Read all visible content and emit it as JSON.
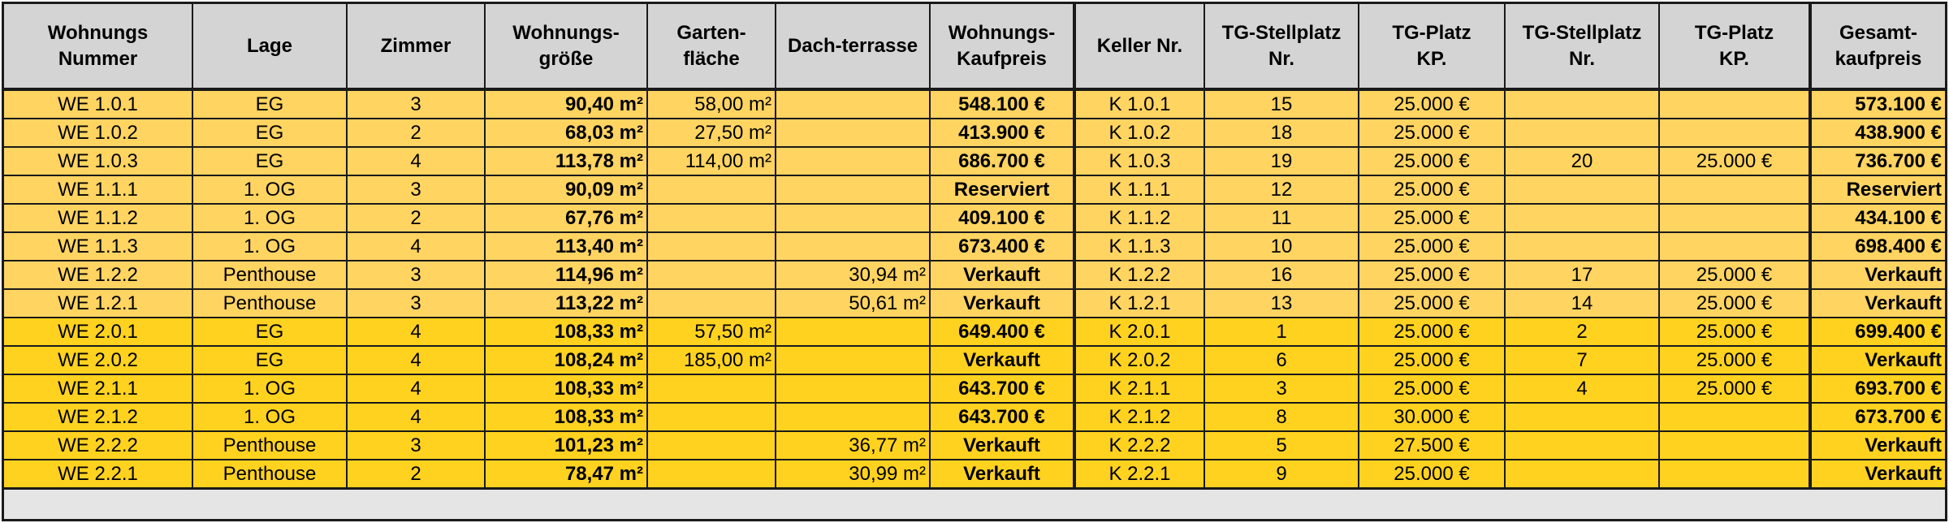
{
  "headers": {
    "nummer": "Wohnungs\nNummer",
    "lage": "Lage",
    "zimmer": "Zimmer",
    "groesse": "Wohnungs-\ngröße",
    "garten": "Garten-\nfläche",
    "dach": "Dach-terrasse",
    "kaufpreis": "Wohnungs-\nKaufpreis",
    "keller": "Keller Nr.",
    "tg1_nr": "TG-Stellplatz\nNr.",
    "tg1_kp": "TG-Platz\nKP.",
    "tg2_nr": "TG-Stellplatz\nNr.",
    "tg2_kp": "TG-Platz\nKP.",
    "gesamt": "Gesamt-\nkaufpreis"
  },
  "colors": {
    "header_bg": "#d4d4d4",
    "group1_bg": "#ffd461",
    "group2_bg": "#ffd21f",
    "footer_bg": "#e5e5e5",
    "border": "#1a1a1a"
  },
  "rows": [
    {
      "group": 1,
      "nummer": "WE 1.0.1",
      "lage": "EG",
      "zimmer": "3",
      "groesse": "90,40 m²",
      "garten": "58,00 m²",
      "dach": "",
      "kaufpreis": "548.100 €",
      "keller": "K 1.0.1",
      "tg1_nr": "15",
      "tg1_kp": "25.000 €",
      "tg2_nr": "",
      "tg2_kp": "",
      "gesamt": "573.100 €"
    },
    {
      "group": 1,
      "nummer": "WE 1.0.2",
      "lage": "EG",
      "zimmer": "2",
      "groesse": "68,03 m²",
      "garten": "27,50 m²",
      "dach": "",
      "kaufpreis": "413.900 €",
      "keller": "K 1.0.2",
      "tg1_nr": "18",
      "tg1_kp": "25.000 €",
      "tg2_nr": "",
      "tg2_kp": "",
      "gesamt": "438.900 €"
    },
    {
      "group": 1,
      "nummer": "WE 1.0.3",
      "lage": "EG",
      "zimmer": "4",
      "groesse": "113,78 m²",
      "garten": "114,00 m²",
      "dach": "",
      "kaufpreis": "686.700 €",
      "keller": "K 1.0.3",
      "tg1_nr": "19",
      "tg1_kp": "25.000 €",
      "tg2_nr": "20",
      "tg2_kp": "25.000 €",
      "gesamt": "736.700 €"
    },
    {
      "group": 1,
      "nummer": "WE 1.1.1",
      "lage": "1. OG",
      "zimmer": "3",
      "groesse": "90,09 m²",
      "garten": "",
      "dach": "",
      "kaufpreis": "Reserviert",
      "keller": "K 1.1.1",
      "tg1_nr": "12",
      "tg1_kp": "25.000 €",
      "tg2_nr": "",
      "tg2_kp": "",
      "gesamt": "Reserviert"
    },
    {
      "group": 1,
      "nummer": "WE 1.1.2",
      "lage": "1. OG",
      "zimmer": "2",
      "groesse": "67,76 m²",
      "garten": "",
      "dach": "",
      "kaufpreis": "409.100 €",
      "keller": "K 1.1.2",
      "tg1_nr": "11",
      "tg1_kp": "25.000 €",
      "tg2_nr": "",
      "tg2_kp": "",
      "gesamt": "434.100 €"
    },
    {
      "group": 1,
      "nummer": "WE 1.1.3",
      "lage": "1. OG",
      "zimmer": "4",
      "groesse": "113,40 m²",
      "garten": "",
      "dach": "",
      "kaufpreis": "673.400 €",
      "keller": "K 1.1.3",
      "tg1_nr": "10",
      "tg1_kp": "25.000 €",
      "tg2_nr": "",
      "tg2_kp": "",
      "gesamt": "698.400 €"
    },
    {
      "group": 1,
      "nummer": "WE 1.2.2",
      "lage": "Penthouse",
      "zimmer": "3",
      "groesse": "114,96 m²",
      "garten": "",
      "dach": "30,94 m²",
      "kaufpreis": "Verkauft",
      "keller": "K 1.2.2",
      "tg1_nr": "16",
      "tg1_kp": "25.000 €",
      "tg2_nr": "17",
      "tg2_kp": "25.000 €",
      "gesamt": "Verkauft"
    },
    {
      "group": 1,
      "nummer": "WE 1.2.1",
      "lage": "Penthouse",
      "zimmer": "3",
      "groesse": "113,22 m²",
      "garten": "",
      "dach": "50,61 m²",
      "kaufpreis": "Verkauft",
      "keller": "K 1.2.1",
      "tg1_nr": "13",
      "tg1_kp": "25.000 €",
      "tg2_nr": "14",
      "tg2_kp": "25.000 €",
      "gesamt": "Verkauft"
    },
    {
      "group": 2,
      "nummer": "WE 2.0.1",
      "lage": "EG",
      "zimmer": "4",
      "groesse": "108,33 m²",
      "garten": "57,50 m²",
      "dach": "",
      "kaufpreis": "649.400 €",
      "keller": "K 2.0.1",
      "tg1_nr": "1",
      "tg1_kp": "25.000 €",
      "tg2_nr": "2",
      "tg2_kp": "25.000 €",
      "gesamt": "699.400 €"
    },
    {
      "group": 2,
      "nummer": "WE 2.0.2",
      "lage": "EG",
      "zimmer": "4",
      "groesse": "108,24 m²",
      "garten": "185,00 m²",
      "dach": "",
      "kaufpreis": "Verkauft",
      "keller": "K 2.0.2",
      "tg1_nr": "6",
      "tg1_kp": "25.000 €",
      "tg2_nr": "7",
      "tg2_kp": "25.000 €",
      "gesamt": "Verkauft"
    },
    {
      "group": 2,
      "nummer": "WE 2.1.1",
      "lage": "1. OG",
      "zimmer": "4",
      "groesse": "108,33 m²",
      "garten": "",
      "dach": "",
      "kaufpreis": "643.700 €",
      "keller": "K 2.1.1",
      "tg1_nr": "3",
      "tg1_kp": "25.000 €",
      "tg2_nr": "4",
      "tg2_kp": "25.000 €",
      "gesamt": "693.700 €"
    },
    {
      "group": 2,
      "nummer": "WE 2.1.2",
      "lage": "1. OG",
      "zimmer": "4",
      "groesse": "108,33 m²",
      "garten": "",
      "dach": "",
      "kaufpreis": "643.700 €",
      "keller": "K 2.1.2",
      "tg1_nr": "8",
      "tg1_kp": "30.000 €",
      "tg2_nr": "",
      "tg2_kp": "",
      "gesamt": "673.700 €"
    },
    {
      "group": 2,
      "nummer": "WE 2.2.2",
      "lage": "Penthouse",
      "zimmer": "3",
      "groesse": "101,23 m²",
      "garten": "",
      "dach": "36,77 m²",
      "kaufpreis": "Verkauft",
      "keller": "K 2.2.2",
      "tg1_nr": "5",
      "tg1_kp": "27.500 €",
      "tg2_nr": "",
      "tg2_kp": "",
      "gesamt": "Verkauft"
    },
    {
      "group": 2,
      "nummer": "WE 2.2.1",
      "lage": "Penthouse",
      "zimmer": "2",
      "groesse": "78,47 m²",
      "garten": "",
      "dach": "30,99 m²",
      "kaufpreis": "Verkauft",
      "keller": "K 2.2.1",
      "tg1_nr": "9",
      "tg1_kp": "25.000 €",
      "tg2_nr": "",
      "tg2_kp": "",
      "gesamt": "Verkauft"
    }
  ]
}
